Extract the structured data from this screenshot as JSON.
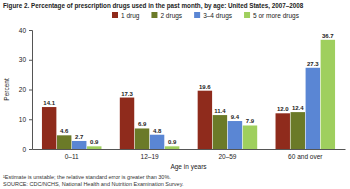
{
  "chart_data": {
    "type": "bar",
    "title": "Figure 2. Percentage of prescription drugs used in the past month, by age: United States, 2007–2008",
    "x_label": "Age in years",
    "y_label": "Percent",
    "categories": [
      "0–11",
      "12–19",
      "20–59",
      "60 and over"
    ],
    "series": [
      {
        "name": "1 drug",
        "color": "#8f2b1c",
        "values": [
          14.1,
          17.3,
          19.6,
          12.0
        ],
        "value_labels": [
          "14.1",
          "17.3",
          "19.6",
          "12.0"
        ]
      },
      {
        "name": "2 drugs",
        "color": "#6b7a28",
        "values": [
          4.6,
          6.9,
          11.4,
          12.4
        ],
        "value_labels": [
          "4.6",
          "6.9",
          "11.4",
          "12.4"
        ]
      },
      {
        "name": "3–4 drugs",
        "color": "#5a86d4",
        "values": [
          2.7,
          4.8,
          9.4,
          27.3
        ],
        "value_labels": [
          "2.7",
          "4.8",
          "9.4",
          "27.3"
        ]
      },
      {
        "name": "5 or more drugs",
        "color": "#9fcf5e",
        "values": [
          0.9,
          0.9,
          7.9,
          36.7
        ],
        "value_labels": [
          "0.9",
          "0.9",
          "7.9",
          "36.7"
        ]
      }
    ],
    "ylim": [
      0,
      40
    ],
    "yticks": [
      0,
      10,
      20,
      30,
      40
    ],
    "grid": false,
    "legend": "top",
    "data_labels": true,
    "annotations": [
      "¹Estimate is unstable; the relative standard error is greater than 30%.",
      "SOURCE: CDC/NCHS, National Health and Nutrition Examination Survey."
    ]
  }
}
